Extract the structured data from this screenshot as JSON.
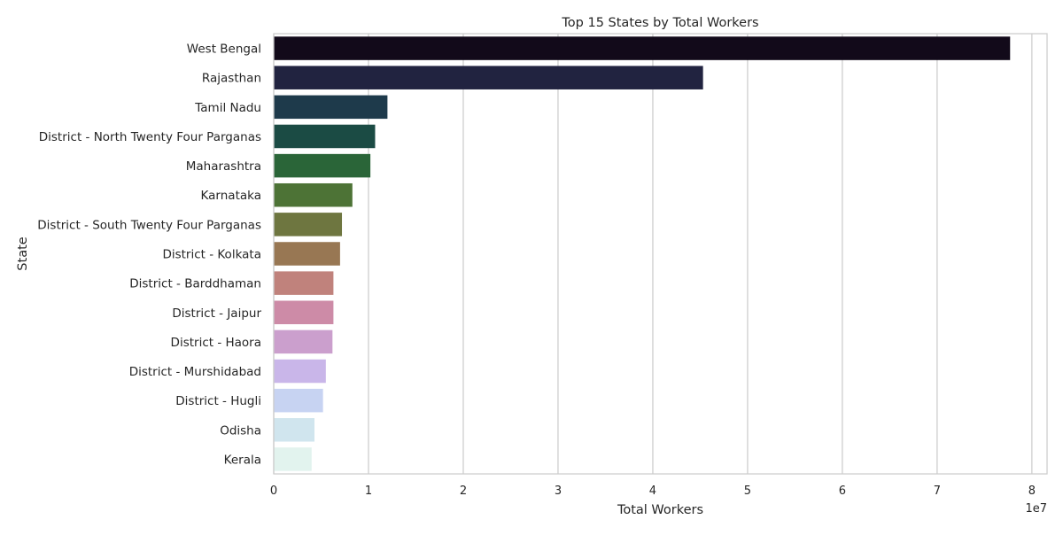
{
  "chart_data": {
    "type": "bar",
    "orientation": "horizontal",
    "title": "Top 15 States by Total Workers",
    "xlabel": "Total Workers",
    "ylabel": "State",
    "x_offset_label": "1e7",
    "x_tick_labels": [
      "0",
      "1",
      "2",
      "3",
      "4",
      "5",
      "6",
      "7",
      "8"
    ],
    "x_tick_values": [
      0,
      10000000,
      20000000,
      30000000,
      40000000,
      50000000,
      60000000,
      70000000,
      80000000
    ],
    "xlim": [
      0,
      81600000
    ],
    "grid": "vertical",
    "categories": [
      "West Bengal",
      "Rajasthan",
      "Tamil Nadu",
      "District - North Twenty Four Parganas",
      "Maharashtra",
      "Karnataka",
      "District - South Twenty Four Parganas",
      "District - Kolkata",
      "District - Barddhaman",
      "District - Jaipur",
      "District - Haora",
      "District - Murshidabad",
      "District - Hugli",
      "Odisha",
      "Kerala"
    ],
    "values": [
      77700000,
      45300000,
      12000000,
      10700000,
      10200000,
      8300000,
      7200000,
      7000000,
      6300000,
      6300000,
      6200000,
      5500000,
      5200000,
      4300000,
      4000000
    ],
    "colors": [
      "#120a1a",
      "#212340",
      "#1e3a4b",
      "#1b4b44",
      "#2a6538",
      "#4d7336",
      "#6e7640",
      "#987753",
      "#c0827c",
      "#cd8ba7",
      "#cb9fcd",
      "#c9b6e9",
      "#c7d3f2",
      "#d0e5ee",
      "#e2f3ee"
    ]
  }
}
